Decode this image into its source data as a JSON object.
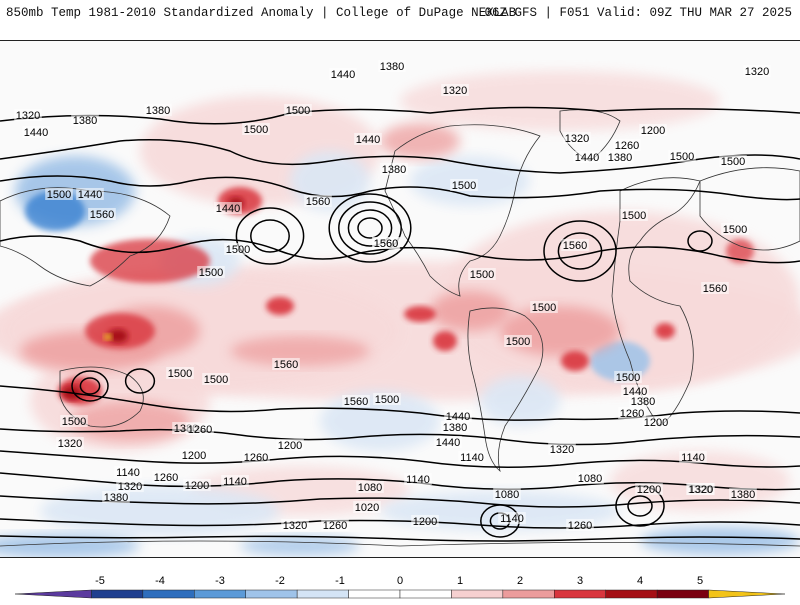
{
  "header": {
    "left_title": "850mb Temp 1981-2010 Standardized Anomaly | College of DuPage NEXLAB",
    "right_title": "06Z GFS | F051 Valid: 09Z THU MAR 27 2025"
  },
  "map": {
    "projection": "cylindrical-equidistant",
    "field": "850mb temperature standardized anomaly",
    "contour_field": "geopotential height",
    "contour_labels": [
      {
        "text": "1380"
      },
      {
        "text": "1320"
      },
      {
        "text": "1440"
      },
      {
        "text": "1320"
      },
      {
        "text": "1320"
      },
      {
        "text": "1380"
      },
      {
        "text": "1380"
      },
      {
        "text": "1500"
      },
      {
        "text": "1440"
      },
      {
        "text": "1500"
      },
      {
        "text": "1440"
      },
      {
        "text": "1200"
      },
      {
        "text": "1320"
      },
      {
        "text": "1260"
      },
      {
        "text": "1440"
      },
      {
        "text": "1380"
      },
      {
        "text": "1500"
      },
      {
        "text": "1380"
      },
      {
        "text": "1440"
      },
      {
        "text": "1560"
      },
      {
        "text": "1500"
      },
      {
        "text": "1440"
      },
      {
        "text": "1560"
      },
      {
        "text": "1500"
      },
      {
        "text": "1500"
      },
      {
        "text": "1500"
      },
      {
        "text": "1560"
      },
      {
        "text": "1500"
      },
      {
        "text": "1560"
      },
      {
        "text": "1500"
      },
      {
        "text": "1500"
      },
      {
        "text": "1500"
      },
      {
        "text": "1500"
      },
      {
        "text": "1500"
      },
      {
        "text": "1560"
      },
      {
        "text": "1500"
      },
      {
        "text": "1500"
      },
      {
        "text": "1560"
      },
      {
        "text": "1500"
      },
      {
        "text": "1440"
      },
      {
        "text": "1380"
      },
      {
        "text": "1260"
      },
      {
        "text": "1200"
      },
      {
        "text": "1500"
      },
      {
        "text": "1440"
      },
      {
        "text": "1380"
      },
      {
        "text": "1440"
      },
      {
        "text": "1380"
      },
      {
        "text": "1320"
      },
      {
        "text": "1260"
      },
      {
        "text": "1200"
      },
      {
        "text": "1320"
      },
      {
        "text": "1200"
      },
      {
        "text": "1260"
      },
      {
        "text": "1140"
      },
      {
        "text": "1140"
      },
      {
        "text": "1320"
      },
      {
        "text": "1260"
      },
      {
        "text": "1200"
      },
      {
        "text": "1140"
      },
      {
        "text": "1380"
      },
      {
        "text": "1080"
      },
      {
        "text": "1140"
      },
      {
        "text": "1020"
      },
      {
        "text": "1080"
      },
      {
        "text": "1140"
      },
      {
        "text": "1320"
      },
      {
        "text": "1260"
      },
      {
        "text": "1200"
      },
      {
        "text": "1260"
      },
      {
        "text": "1320"
      },
      {
        "text": "1080"
      },
      {
        "text": "1200"
      },
      {
        "text": "1320"
      },
      {
        "text": "1380"
      },
      {
        "text": "1140"
      },
      {
        "text": "1500"
      },
      {
        "text": "1560"
      },
      {
        "text": "1560"
      }
    ],
    "colors": {
      "warm_light": "#f7dada",
      "warm_mid": "#eea3a3",
      "warm_strong": "#d9363e",
      "warm_extreme": "#a50f15",
      "warm_peak": "#f2d020",
      "cool_light": "#dbe7f5",
      "cool_mid": "#a3c4e8",
      "cool_strong": "#3b82d1",
      "neutral": "#fafafa"
    }
  },
  "colorbar": {
    "ticks": [
      "-5",
      "-4",
      "-3",
      "-2",
      "-1",
      "0",
      "1",
      "2",
      "3",
      "4",
      "5"
    ],
    "min": -6,
    "max": 6,
    "colors": [
      "#5b3a9e",
      "#1f3f8f",
      "#2e6ebd",
      "#5b9ad8",
      "#9fc3e9",
      "#d4e4f5",
      "#ffffff",
      "#ffffff",
      "#f6d0d0",
      "#ec9c9c",
      "#d9363e",
      "#a50f15",
      "#7a0010",
      "#f2c318"
    ]
  }
}
